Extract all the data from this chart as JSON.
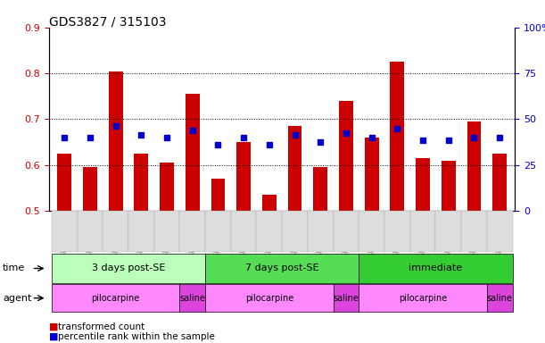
{
  "title": "GDS3827 / 315103",
  "samples": [
    "GSM367527",
    "GSM367528",
    "GSM367531",
    "GSM367532",
    "GSM367534",
    "GSM367718",
    "GSM367536",
    "GSM367538",
    "GSM367539",
    "GSM367540",
    "GSM367541",
    "GSM367719",
    "GSM367545",
    "GSM367546",
    "GSM367548",
    "GSM367549",
    "GSM367551",
    "GSM367721"
  ],
  "bar_values": [
    0.625,
    0.595,
    0.805,
    0.625,
    0.605,
    0.755,
    0.57,
    0.65,
    0.535,
    0.685,
    0.595,
    0.74,
    0.66,
    0.825,
    0.615,
    0.61,
    0.695,
    0.625
  ],
  "dot_values": [
    0.66,
    0.66,
    0.685,
    0.665,
    0.66,
    0.675,
    0.645,
    0.66,
    0.645,
    0.665,
    0.65,
    0.67,
    0.66,
    0.68,
    0.655,
    0.655,
    0.66,
    0.66
  ],
  "bar_color": "#CC0000",
  "dot_color": "#0000CC",
  "ylim_left": [
    0.5,
    0.9
  ],
  "ylim_right": [
    0,
    100
  ],
  "yticks_left": [
    0.5,
    0.6,
    0.7,
    0.8,
    0.9
  ],
  "yticks_right": [
    0,
    25,
    50,
    75,
    100
  ],
  "ytick_labels_right": [
    "0",
    "25",
    "50",
    "75",
    "100%"
  ],
  "time_groups": [
    {
      "label": "3 days post-SE",
      "start": 0,
      "end": 5,
      "color": "#bbffbb"
    },
    {
      "label": "7 days post-SE",
      "start": 6,
      "end": 11,
      "color": "#55dd55"
    },
    {
      "label": "immediate",
      "start": 12,
      "end": 17,
      "color": "#33cc33"
    }
  ],
  "agent_groups": [
    {
      "label": "pilocarpine",
      "start": 0,
      "end": 4,
      "color": "#ff88ff"
    },
    {
      "label": "saline",
      "start": 5,
      "end": 5,
      "color": "#dd44dd"
    },
    {
      "label": "pilocarpine",
      "start": 6,
      "end": 10,
      "color": "#ff88ff"
    },
    {
      "label": "saline",
      "start": 11,
      "end": 11,
      "color": "#dd44dd"
    },
    {
      "label": "pilocarpine",
      "start": 12,
      "end": 16,
      "color": "#ff88ff"
    },
    {
      "label": "saline",
      "start": 17,
      "end": 17,
      "color": "#dd44dd"
    }
  ],
  "legend_items": [
    {
      "color": "#CC0000",
      "label": "transformed count"
    },
    {
      "color": "#0000CC",
      "label": "percentile rank within the sample"
    }
  ],
  "background_color": "#ffffff"
}
